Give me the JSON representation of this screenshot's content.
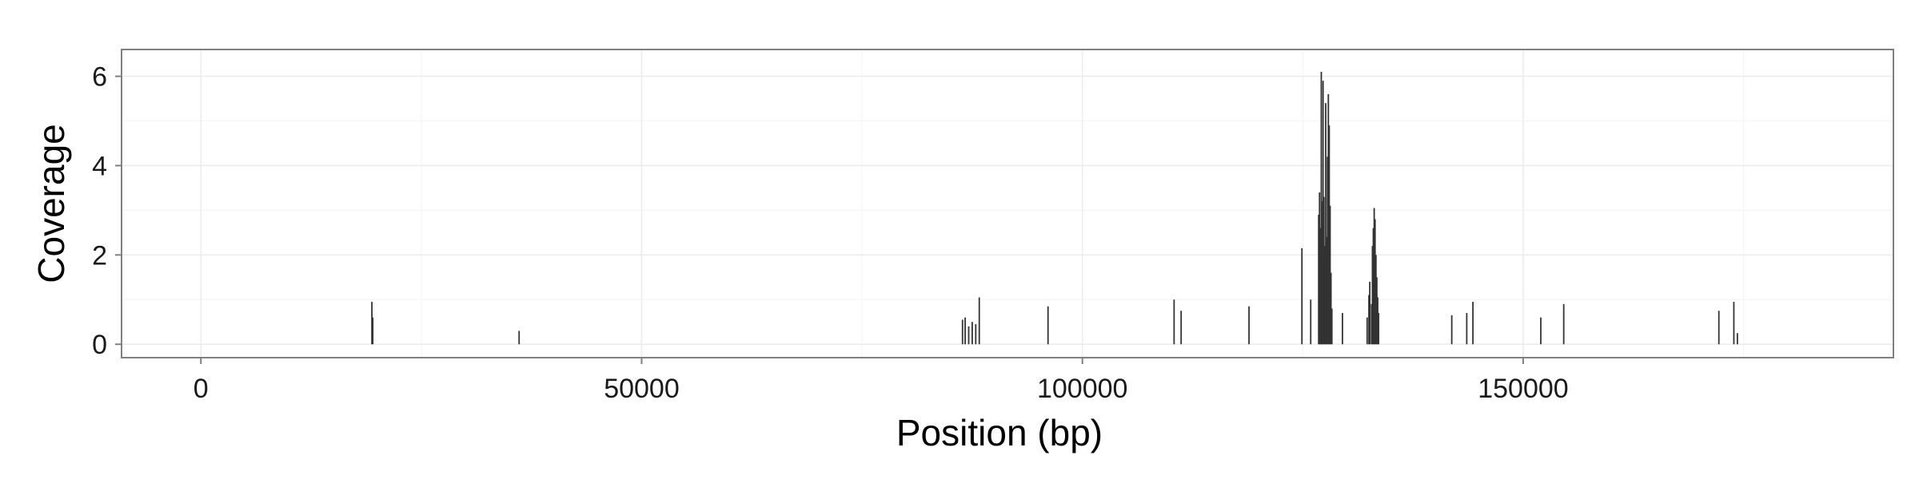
{
  "chart_data": {
    "type": "bar",
    "title": "",
    "xlabel": "Position (bp)",
    "ylabel": "Coverage",
    "xlim": [
      -9000,
      192000
    ],
    "ylim": [
      -0.3,
      6.6
    ],
    "x_ticks": [
      0,
      50000,
      100000,
      150000
    ],
    "x_tick_labels": [
      "0",
      "50000",
      "100000",
      "150000"
    ],
    "y_ticks": [
      0,
      2,
      4,
      6
    ],
    "y_tick_labels": [
      "0",
      "2",
      "4",
      "6"
    ],
    "grid": true,
    "legend": "none",
    "bar_color": "#333333",
    "series": [
      {
        "x": [
          19400,
          19500,
          36100,
          86400,
          86700,
          87100,
          87500,
          87900,
          88300,
          96100,
          110400,
          111200,
          118900,
          124900,
          125900,
          126800,
          126900,
          127000,
          127100,
          127150,
          127200,
          127300,
          127400,
          127500,
          127600,
          127700,
          127800,
          127900,
          128000,
          128100,
          128200,
          128300,
          129500,
          132300,
          132500,
          132600,
          132800,
          132900,
          133000,
          133100,
          133200,
          133300,
          133400,
          133500,
          133600,
          141900,
          143600,
          144300,
          152000,
          154600,
          172200,
          173900,
          174300
        ],
        "values": [
          0.95,
          0.6,
          0.3,
          0.55,
          0.6,
          0.4,
          0.5,
          0.45,
          1.05,
          0.85,
          1.0,
          0.75,
          0.85,
          2.15,
          1.0,
          2.9,
          3.4,
          2.6,
          6.1,
          3.2,
          2.7,
          5.9,
          3.3,
          2.2,
          5.4,
          2.4,
          4.2,
          5.6,
          4.9,
          3.1,
          1.6,
          0.8,
          0.7,
          0.6,
          1.1,
          1.4,
          0.9,
          2.2,
          2.6,
          3.05,
          2.8,
          2.0,
          1.5,
          1.05,
          0.7,
          0.65,
          0.7,
          0.95,
          0.6,
          0.9,
          0.75,
          0.95,
          0.25
        ]
      }
    ]
  }
}
